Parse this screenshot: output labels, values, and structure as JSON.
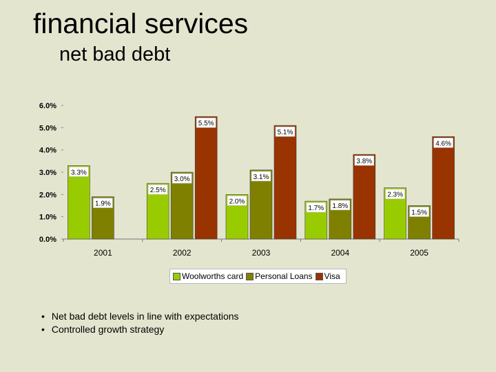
{
  "slide": {
    "title": "financial services",
    "subtitle": "net bad debt",
    "bullets": [
      "Net bad debt levels in line with expectations",
      "Controlled growth strategy"
    ]
  },
  "chart_data": {
    "type": "bar",
    "categories": [
      "2001",
      "2002",
      "2003",
      "2004",
      "2005"
    ],
    "series": [
      {
        "name": "Woolworths card",
        "color": "#99cc00",
        "values": [
          3.3,
          2.5,
          2.0,
          1.7,
          2.3
        ],
        "labels": [
          "3.3%",
          "2.5%",
          "2.0%",
          "1.7%",
          "2.3%"
        ]
      },
      {
        "name": "Personal Loans",
        "color": "#808000",
        "values": [
          1.9,
          3.0,
          3.1,
          1.8,
          1.5
        ],
        "labels": [
          "1.9%",
          "3.0%",
          "3.1%",
          "1.8%",
          "1.5%"
        ]
      },
      {
        "name": "Visa",
        "color": "#993300",
        "values": [
          null,
          5.5,
          5.1,
          3.8,
          4.6
        ],
        "labels": [
          "",
          "5.5%",
          "5.1%",
          "3.8%",
          "4.6%"
        ]
      }
    ],
    "ylim": [
      0,
      6
    ],
    "yticks": [
      0,
      1,
      2,
      3,
      4,
      5,
      6
    ],
    "ytick_labels": [
      "0.0%",
      "1.0%",
      "2.0%",
      "3.0%",
      "4.0%",
      "5.0%",
      "6.0%"
    ],
    "grid": false,
    "legend": "bottom"
  }
}
